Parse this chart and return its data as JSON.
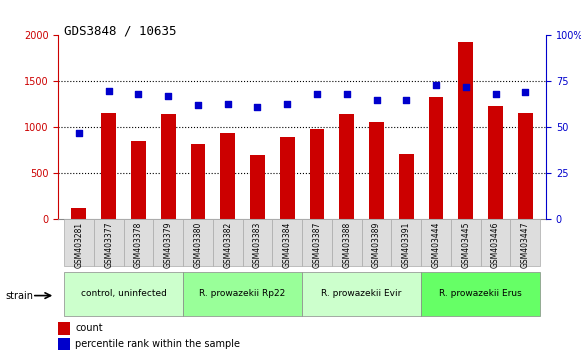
{
  "title": "GDS3848 / 10635",
  "samples": [
    "GSM403281",
    "GSM403377",
    "GSM403378",
    "GSM403379",
    "GSM403380",
    "GSM403382",
    "GSM403383",
    "GSM403384",
    "GSM403387",
    "GSM403388",
    "GSM403389",
    "GSM403391",
    "GSM403444",
    "GSM403445",
    "GSM403446",
    "GSM403447"
  ],
  "counts": [
    130,
    1160,
    850,
    1150,
    820,
    940,
    700,
    900,
    980,
    1150,
    1060,
    710,
    1330,
    1930,
    1230,
    1160
  ],
  "percentiles": [
    47,
    70,
    68,
    67,
    62,
    63,
    61,
    63,
    68,
    68,
    65,
    65,
    73,
    72,
    68,
    69
  ],
  "ylim_left": [
    0,
    2000
  ],
  "ylim_right": [
    0,
    100
  ],
  "yticks_left": [
    0,
    500,
    1000,
    1500,
    2000
  ],
  "yticks_right": [
    0,
    25,
    50,
    75,
    100
  ],
  "bar_color": "#cc0000",
  "dot_color": "#0000cc",
  "grid_color": "#000000",
  "bg_color": "#ffffff",
  "strain_groups": [
    {
      "label": "control, uninfected",
      "start": 0,
      "end": 3,
      "color": "#ccffcc"
    },
    {
      "label": "R. prowazekii Rp22",
      "start": 4,
      "end": 7,
      "color": "#99ff99"
    },
    {
      "label": "R. prowazekii Evir",
      "start": 8,
      "end": 11,
      "color": "#ccffcc"
    },
    {
      "label": "R. prowazekii Erus",
      "start": 12,
      "end": 15,
      "color": "#66ff66"
    }
  ],
  "legend_count_label": "count",
  "legend_pct_label": "percentile rank within the sample",
  "strain_label": "strain",
  "title_color": "#000000",
  "left_axis_color": "#cc0000",
  "right_axis_color": "#0000cc"
}
